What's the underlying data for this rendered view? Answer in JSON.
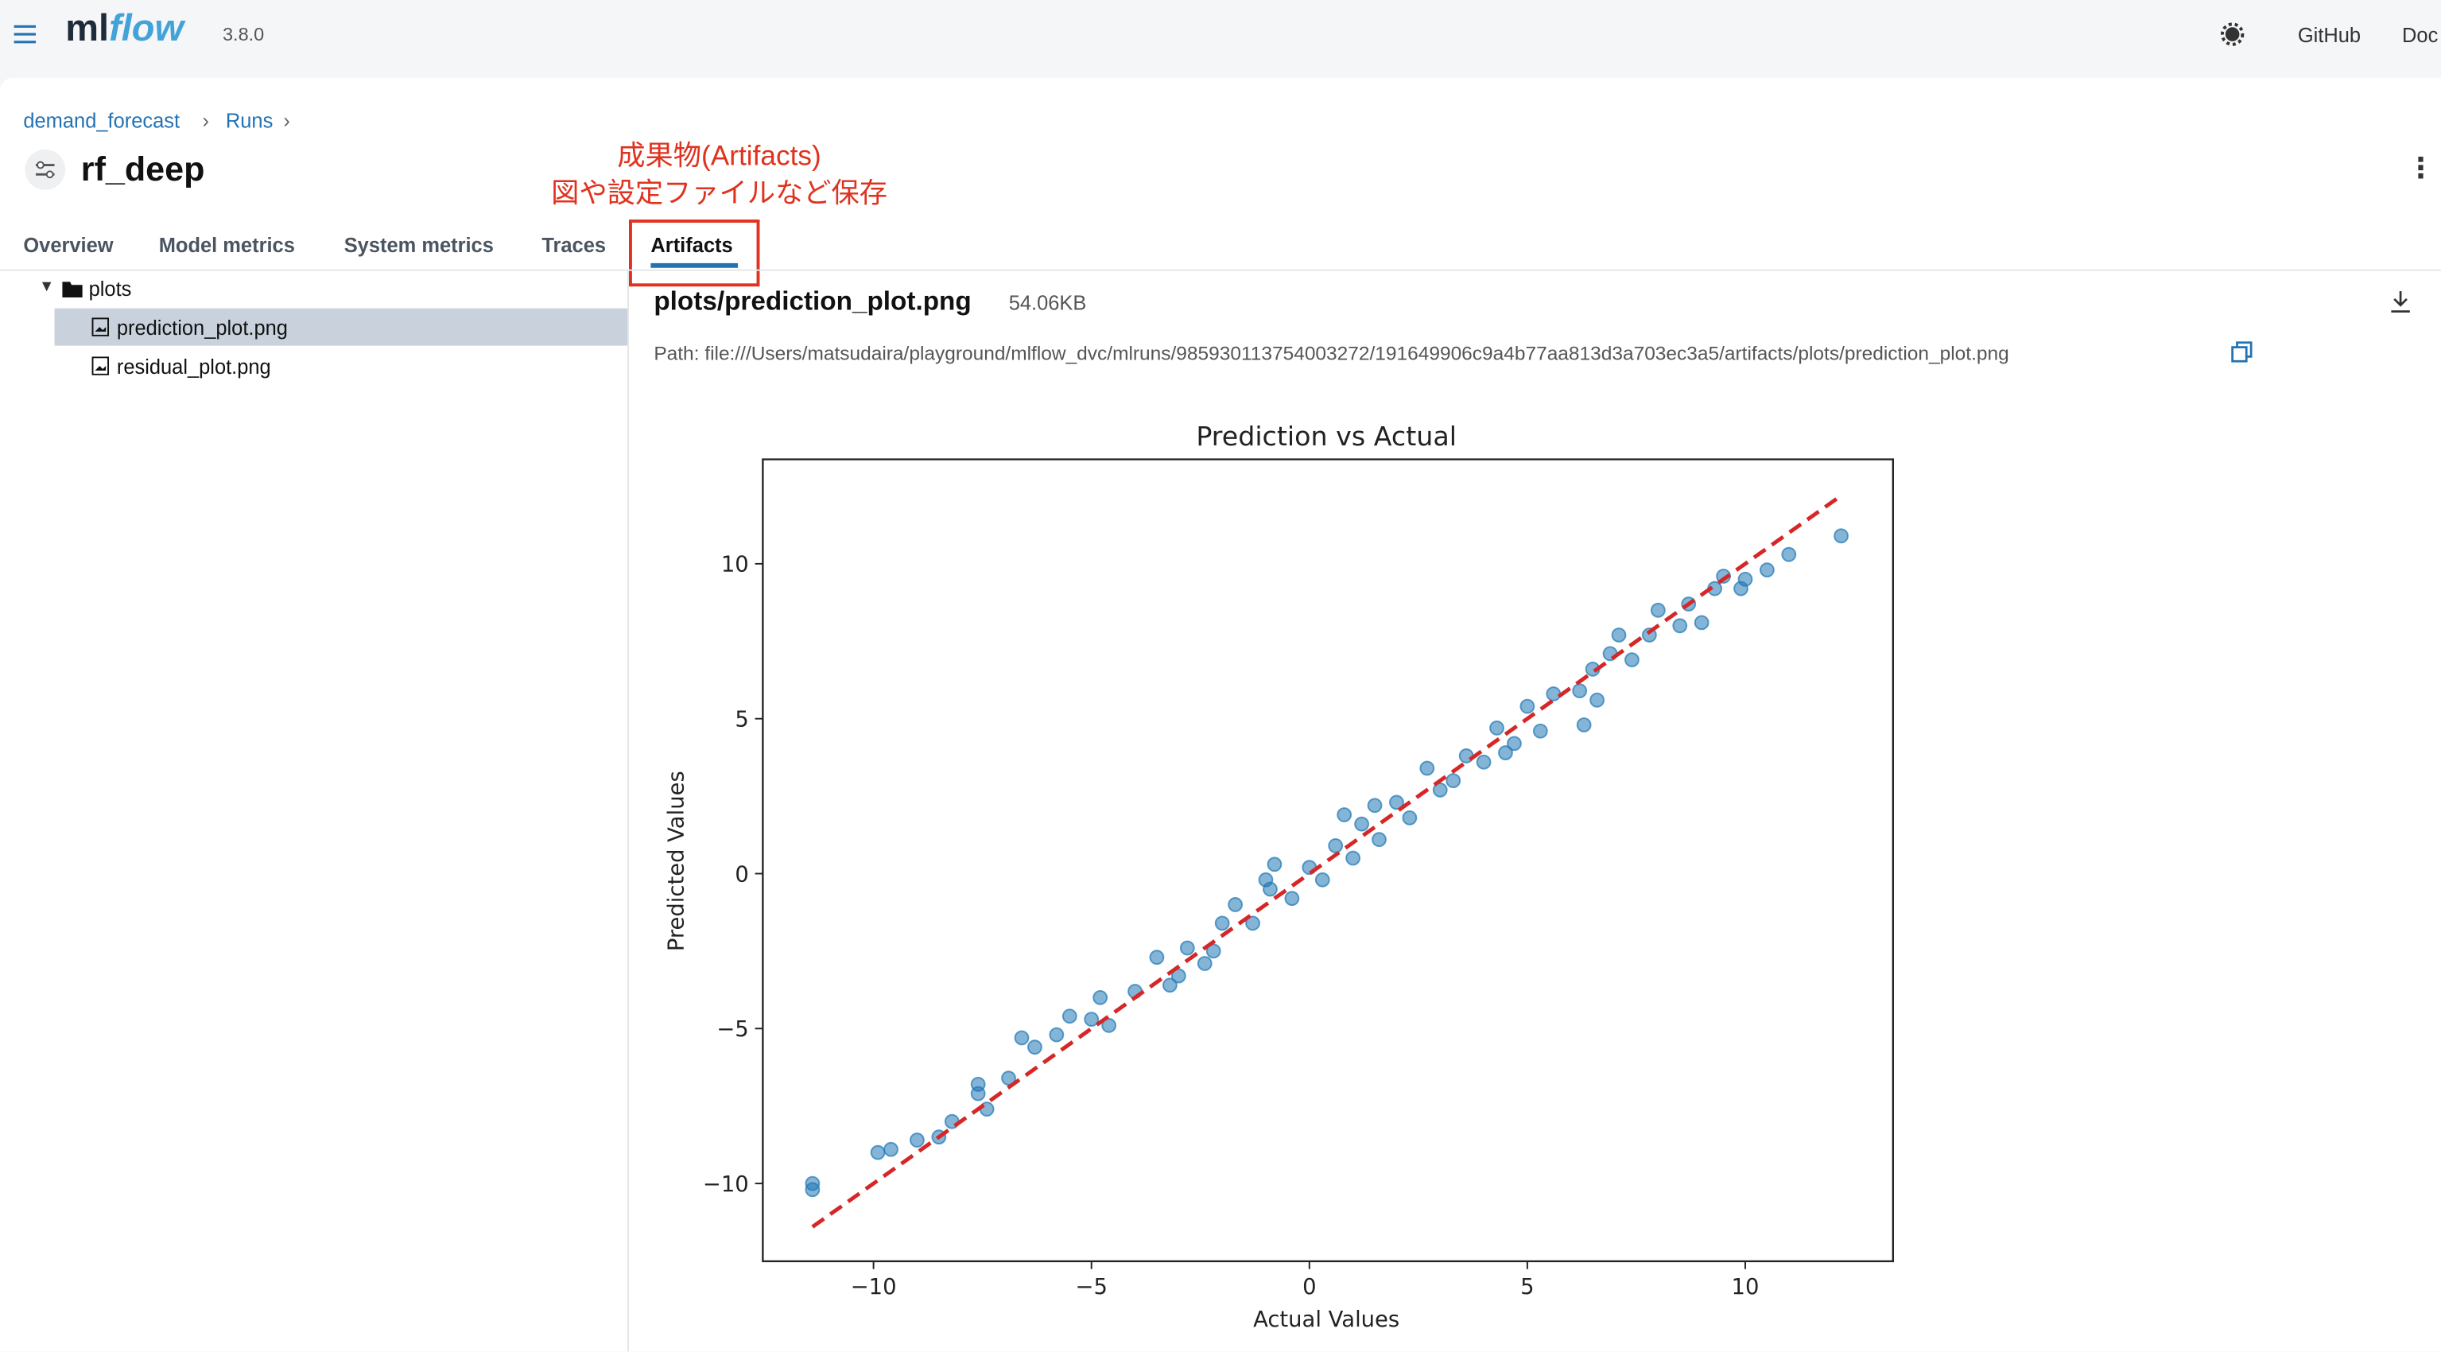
{
  "header": {
    "logo": [
      "ml",
      "flow"
    ],
    "version": "3.8.0",
    "links": [
      "GitHub",
      "Doc"
    ]
  },
  "breadcrumb": [
    "demand_forecast",
    "Runs"
  ],
  "run_name": "rf_deep",
  "annotation": [
    "成果物(Artifacts)",
    "図や設定ファイルなど保存"
  ],
  "tabs": [
    "Overview",
    "Model metrics",
    "System metrics",
    "Traces",
    "Artifacts"
  ],
  "tree": {
    "folder": "plots",
    "files": [
      "prediction_plot.png",
      "residual_plot.png"
    ]
  },
  "file": {
    "name": "plots/prediction_plot.png",
    "size": "54.06KB",
    "path": "Path: file:///Users/matsudaira/playground/mlflow_dvc/mlruns/985930113754003272/191649906c9a4b77aa813d3a703ec3a5/artifacts/plots/prediction_plot.png"
  },
  "chart_data": {
    "type": "scatter",
    "title": "Prediction vs Actual",
    "x_label": "Actual Values",
    "y_label": "Predicted Values",
    "color": "#1f77b4",
    "x": [
      -11.4,
      -11.4,
      -9.9,
      -9.6,
      -9.0,
      -8.5,
      -8.2,
      -7.6,
      -7.6,
      -7.4,
      -6.9,
      -6.6,
      -6.3,
      -5.8,
      -5.5,
      -5.0,
      -4.8,
      -4.6,
      -4.0,
      -3.5,
      -3.2,
      -3.0,
      -2.8,
      -2.4,
      -2.2,
      -2.0,
      -1.7,
      -1.3,
      -1.0,
      -0.9,
      -0.8,
      -0.4,
      0.0,
      0.3,
      0.6,
      0.8,
      1.0,
      1.2,
      1.5,
      1.6,
      2.0,
      2.3,
      2.7,
      3.0,
      3.3,
      3.6,
      4.0,
      4.3,
      4.5,
      4.7,
      5.0,
      5.3,
      5.6,
      6.2,
      6.3,
      6.5,
      6.6,
      6.9,
      7.1,
      7.4,
      7.8,
      8.0,
      8.5,
      8.7,
      9.0,
      9.3,
      9.5,
      9.9,
      10.0,
      10.5,
      11.0,
      12.2
    ],
    "values": [
      -10.2,
      -10.0,
      -9.0,
      -8.9,
      -8.6,
      -8.5,
      -8.0,
      -7.1,
      -6.8,
      -7.6,
      -6.6,
      -5.3,
      -5.6,
      -5.2,
      -4.6,
      -4.7,
      -4.0,
      -4.9,
      -3.8,
      -2.7,
      -3.6,
      -3.3,
      -2.4,
      -2.9,
      -2.5,
      -1.6,
      -1.0,
      -1.6,
      -0.2,
      -0.5,
      0.3,
      -0.8,
      0.2,
      -0.2,
      0.9,
      1.9,
      0.5,
      1.6,
      2.2,
      1.1,
      2.3,
      1.8,
      3.4,
      2.7,
      3.0,
      3.8,
      3.6,
      4.7,
      3.9,
      4.2,
      5.4,
      4.6,
      5.8,
      5.9,
      4.8,
      6.6,
      5.6,
      7.1,
      7.7,
      6.9,
      7.7,
      8.5,
      8.0,
      8.7,
      8.1,
      9.2,
      9.6,
      9.2,
      9.5,
      9.8,
      10.3,
      10.9
    ],
    "reference_line": {
      "x": [
        -11.4,
        12.2
      ],
      "y": [
        -11.4,
        12.2
      ],
      "color": "#d62728"
    },
    "xlim": [
      -12.54,
      13.39
    ],
    "ylim": [
      -12.51,
      13.37
    ],
    "xticks": [
      {
        "value": -10,
        "label": "−10"
      },
      {
        "value": -5,
        "label": "−5"
      },
      0,
      5,
      10
    ],
    "yticks": [
      {
        "value": -10,
        "label": "−10"
      },
      {
        "value": -5,
        "label": "−5"
      },
      0,
      5,
      10
    ]
  }
}
